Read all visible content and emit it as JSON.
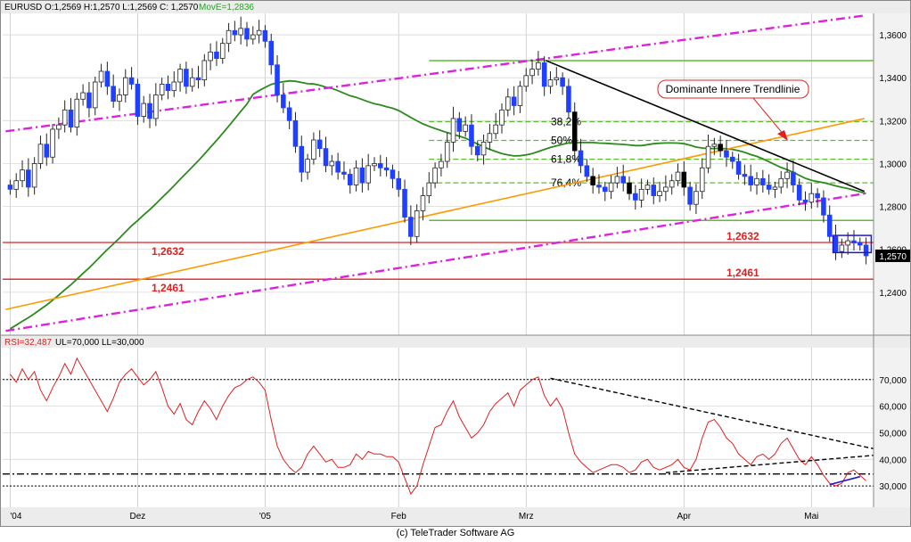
{
  "chart_data": [
    {
      "type": "candlestick",
      "symbol": "EURUSD",
      "ohlc_header": {
        "label": "EURUSD",
        "open": "O:1,2569",
        "high": "H:1,2570",
        "low": "L:1,2569",
        "close": "C: 1,2570"
      },
      "moving_average_label": "MovE=1,2836",
      "last_price": "1,2570",
      "ylim": [
        1.22,
        1.37
      ],
      "y_ticks": [
        {
          "v": 1.36,
          "label": "1,3600"
        },
        {
          "v": 1.34,
          "label": "1,3400"
        },
        {
          "v": 1.32,
          "label": "1,3200"
        },
        {
          "v": 1.3,
          "label": "1,3000"
        },
        {
          "v": 1.28,
          "label": "1,2800"
        },
        {
          "v": 1.26,
          "label": "1,2600"
        },
        {
          "v": 1.24,
          "label": "1,2400"
        }
      ],
      "x_labels": [
        {
          "label": "'04",
          "bar": 0
        },
        {
          "label": "Dez",
          "bar": 21
        },
        {
          "label": "'05",
          "bar": 42
        },
        {
          "label": "Feb",
          "bar": 64
        },
        {
          "label": "Mrz",
          "bar": 85
        },
        {
          "label": "Apr",
          "bar": 111
        },
        {
          "label": "Mai",
          "bar": 132
        }
      ],
      "closes": [
        1.288,
        1.292,
        1.297,
        1.289,
        1.3,
        1.309,
        1.303,
        1.316,
        1.318,
        1.325,
        1.317,
        1.33,
        1.333,
        1.326,
        1.338,
        1.343,
        1.336,
        1.329,
        1.332,
        1.34,
        1.337,
        1.322,
        1.328,
        1.321,
        1.332,
        1.337,
        1.334,
        1.338,
        1.344,
        1.336,
        1.34,
        1.339,
        1.348,
        1.352,
        1.349,
        1.356,
        1.362,
        1.36,
        1.363,
        1.358,
        1.36,
        1.362,
        1.357,
        1.346,
        1.332,
        1.326,
        1.32,
        1.308,
        1.296,
        1.302,
        1.311,
        1.307,
        1.299,
        1.301,
        1.296,
        1.295,
        1.29,
        1.298,
        1.291,
        1.299,
        1.3,
        1.298,
        1.297,
        1.293,
        1.288,
        1.275,
        1.266,
        1.278,
        1.285,
        1.291,
        1.298,
        1.301,
        1.31,
        1.321,
        1.315,
        1.318,
        1.308,
        1.304,
        1.31,
        1.314,
        1.318,
        1.325,
        1.331,
        1.327,
        1.336,
        1.341,
        1.344,
        1.347,
        1.336,
        1.339,
        1.34,
        1.336,
        1.324,
        1.306,
        1.299,
        1.294,
        1.29,
        1.289,
        1.287,
        1.291,
        1.294,
        1.291,
        1.286,
        1.283,
        1.288,
        1.29,
        1.285,
        1.287,
        1.289,
        1.292,
        1.296,
        1.289,
        1.281,
        1.287,
        1.298,
        1.308,
        1.309,
        1.306,
        1.303,
        1.301,
        1.295,
        1.294,
        1.29,
        1.293,
        1.29,
        1.288,
        1.289,
        1.293,
        1.296,
        1.29,
        1.283,
        1.282,
        1.286,
        1.284,
        1.276,
        1.266,
        1.259,
        1.262,
        1.264,
        1.263,
        1.262,
        1.257
      ],
      "trend_lines": [
        {
          "name": "upper channel",
          "color": "#dd22dd",
          "from": [
            0,
            1.315
          ],
          "to": [
            140,
            1.369
          ]
        },
        {
          "name": "lower channel",
          "color": "#dd22dd",
          "from": [
            0,
            1.222
          ],
          "to": [
            140,
            1.286
          ]
        },
        {
          "name": "Dominante Innere Trendlinie",
          "color": "#ff9900",
          "from": [
            0,
            1.232
          ],
          "to": [
            140,
            1.321
          ]
        },
        {
          "name": "resistance",
          "color": "#000000",
          "from": [
            89,
            1.348
          ],
          "to": [
            140,
            1.287
          ]
        }
      ],
      "horizontal_levels": [
        {
          "label": "1,2632",
          "v": 1.2632,
          "color": "#e02020"
        },
        {
          "label": "1,2461",
          "v": 1.2461,
          "color": "#e02020"
        }
      ],
      "fibonacci": [
        {
          "label": "38,2%",
          "v": 1.3195
        },
        {
          "label": "50%",
          "v": 1.3108
        },
        {
          "label": "61,8%",
          "v": 1.302
        },
        {
          "label": "76,4%",
          "v": 1.291
        }
      ],
      "fib_high": 1.348,
      "fib_low": 1.2735,
      "annotation": "Dominante Innere Trendlinie"
    },
    {
      "type": "line",
      "name": "RSI",
      "header": {
        "rsi": "RSI=32,487",
        "ul": "UL=70,000",
        "ll": "LL=30,000"
      },
      "ylim": [
        22,
        82
      ],
      "y_ticks": [
        {
          "v": 70,
          "label": "70,000"
        },
        {
          "v": 60,
          "label": "60,000"
        },
        {
          "v": 50,
          "label": "50,000"
        },
        {
          "v": 40,
          "label": "40,000"
        },
        {
          "v": 30,
          "label": "30,000"
        }
      ],
      "values": [
        72,
        69,
        74,
        70,
        73,
        66,
        62,
        67,
        71,
        76,
        72,
        78,
        74,
        70,
        66,
        62,
        58,
        63,
        69,
        72,
        74,
        71,
        68,
        70,
        73,
        67,
        60,
        57,
        61,
        55,
        53,
        58,
        62,
        59,
        55,
        60,
        64,
        67,
        68,
        70,
        71,
        69,
        66,
        55,
        45,
        40,
        37,
        35,
        37,
        42,
        45,
        42,
        39,
        40,
        37,
        37,
        38,
        42,
        40,
        43,
        42,
        42,
        41,
        41,
        39,
        33,
        27,
        30,
        38,
        45,
        52,
        53,
        58,
        62,
        56,
        52,
        48,
        50,
        53,
        58,
        61,
        63,
        65,
        60,
        66,
        68,
        70,
        71,
        64,
        60,
        63,
        59,
        50,
        42,
        39,
        37,
        35,
        36,
        37,
        38,
        38,
        37,
        35,
        36,
        39,
        40,
        37,
        36,
        37,
        38,
        40,
        37,
        36,
        40,
        48,
        54,
        55,
        52,
        48,
        46,
        42,
        40,
        38,
        41,
        42,
        40,
        42,
        46,
        48,
        44,
        40,
        38,
        41,
        38,
        34,
        31,
        30,
        31,
        35,
        36,
        34,
        32
      ]
    }
  ],
  "footer": "(c) TeleTrader Software AG"
}
